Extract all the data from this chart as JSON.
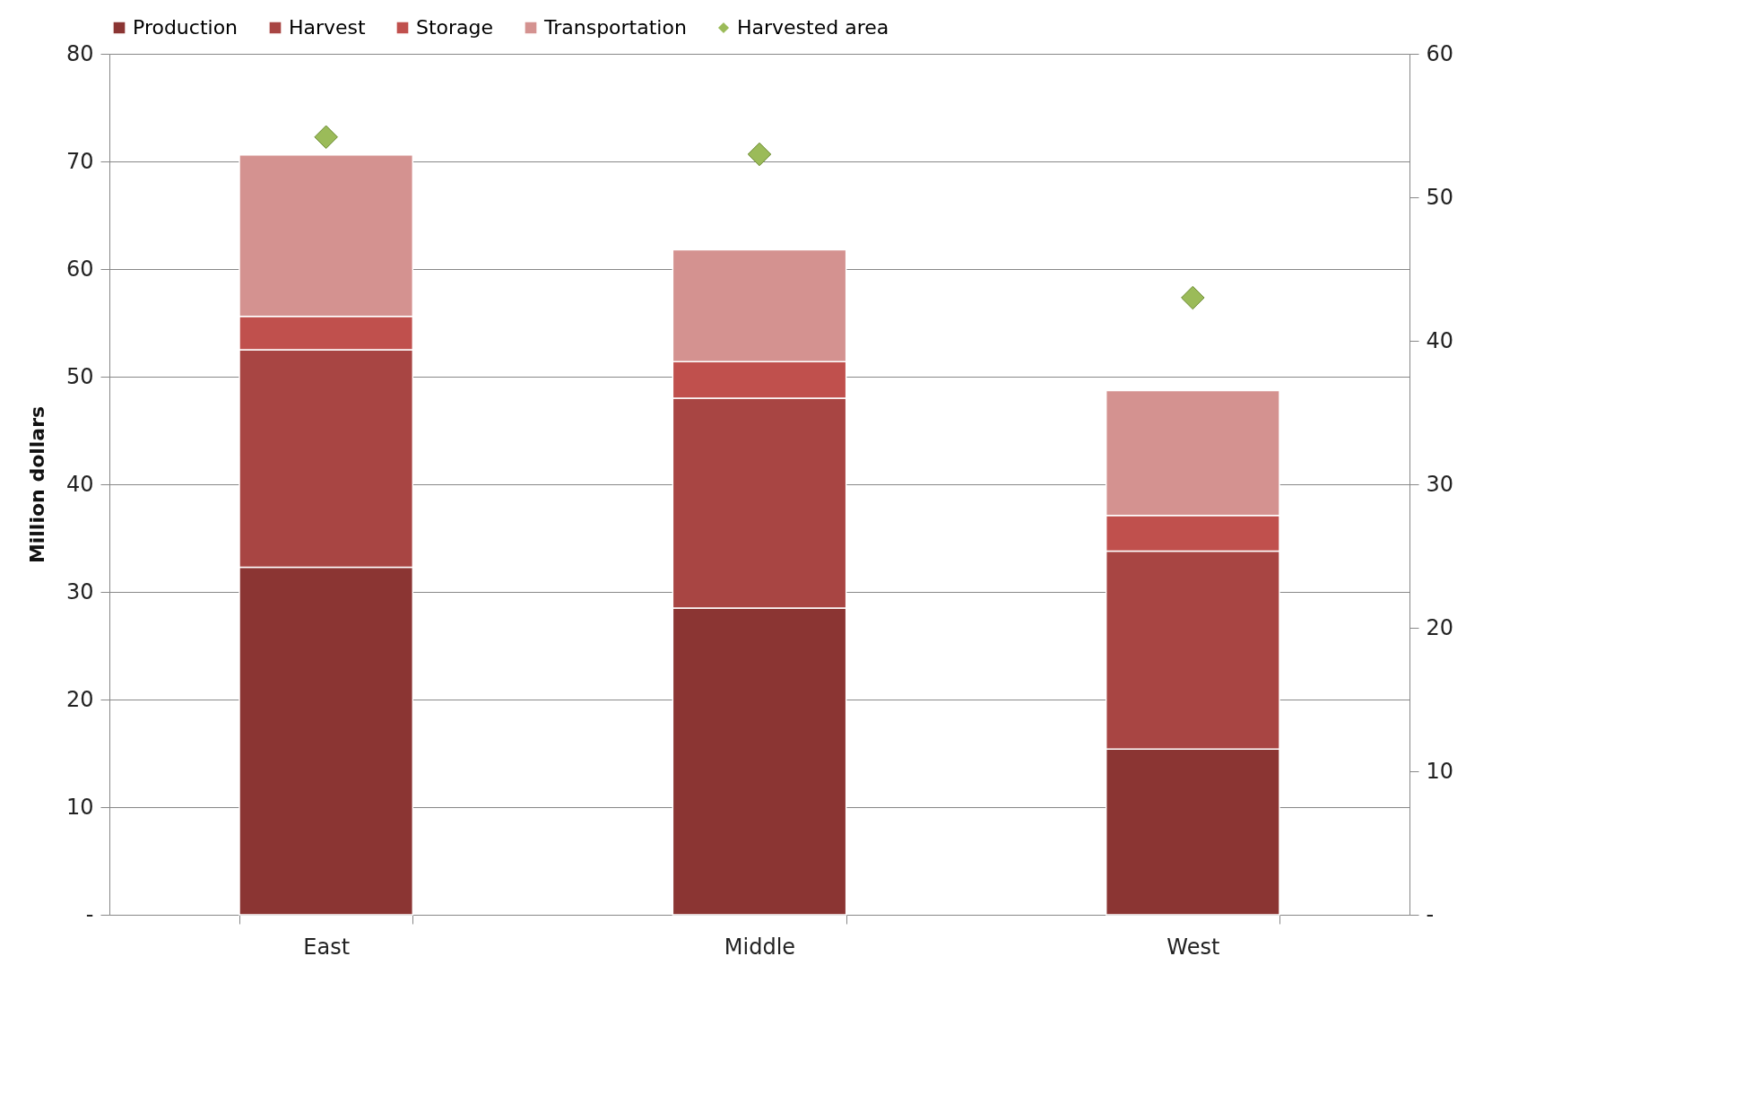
{
  "chart_data": {
    "type": "bar",
    "stacked": true,
    "ylabel": "Million dollars",
    "categories": [
      "East",
      "Middle",
      "West"
    ],
    "ylim": [
      0,
      80
    ],
    "yticks": [
      {
        "value": 0,
        "label": "-"
      },
      10,
      20,
      30,
      40,
      50,
      60,
      70,
      80
    ],
    "y2lim": [
      0,
      60
    ],
    "y2ticks": [
      {
        "value": 0,
        "label": "-"
      },
      10,
      20,
      30,
      40,
      50,
      60
    ],
    "grid": "y",
    "legend": "top",
    "series": [
      {
        "name": "Production",
        "color": "#8b3533",
        "values": [
          32.3,
          28.5,
          15.4
        ]
      },
      {
        "name": "Harvest",
        "color": "#a84543",
        "values": [
          20.2,
          19.5,
          18.4
        ]
      },
      {
        "name": "Storage",
        "color": "#c0504d",
        "values": [
          3.1,
          3.4,
          3.3
        ]
      },
      {
        "name": "Transportation",
        "color": "#d49290",
        "values": [
          15.0,
          10.4,
          11.6
        ]
      },
      {
        "name": "Harvested area",
        "type": "scatter",
        "axis": "y2",
        "marker": "diamond",
        "color": "#9bbb59",
        "values": [
          54.2,
          53.0,
          43.0
        ]
      }
    ]
  }
}
